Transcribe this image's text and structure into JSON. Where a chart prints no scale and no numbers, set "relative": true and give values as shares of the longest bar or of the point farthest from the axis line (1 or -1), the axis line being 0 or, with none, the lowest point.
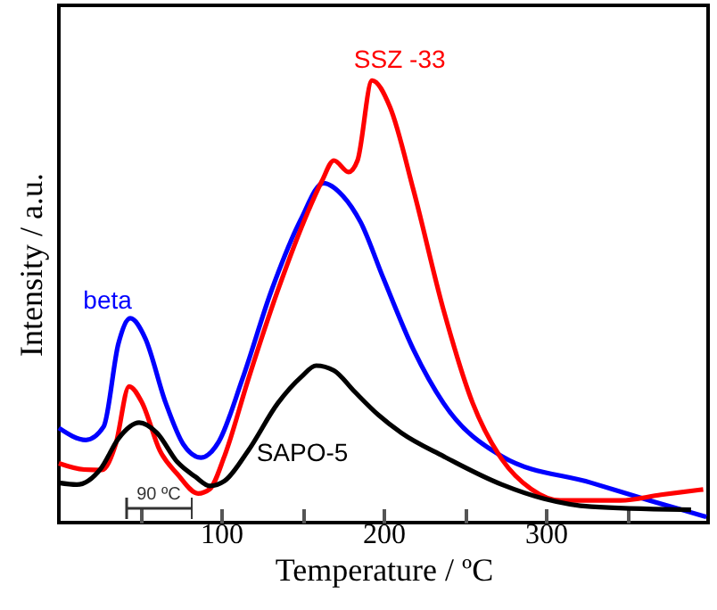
{
  "chart_data": {
    "type": "line",
    "relative": true,
    "xlabel": "Temperature / ºC",
    "ylabel": "Intensity / a.u.",
    "xlim": [
      0,
      400
    ],
    "xticks": [
      {
        "value": 50,
        "label": null
      },
      100,
      {
        "value": 150,
        "label": null
      },
      200,
      {
        "value": 250,
        "label": null
      },
      300,
      {
        "value": 350,
        "label": null
      }
    ],
    "grid": false,
    "marker": "none",
    "line_style": "solid",
    "annotations": [
      "90 ºC"
    ],
    "series": [
      {
        "name": "beta",
        "color": "#0000ff",
        "x": [
          0,
          16.7,
          27.6,
          36.7,
          44,
          53.1,
          65.8,
          76.7,
          87.6,
          98.5,
          113,
          131,
          149,
          163,
          175,
          186,
          200,
          218.5,
          237,
          273,
          328,
          364,
          399
        ],
        "values": [
          0.214,
          0.187,
          0.217,
          0.405,
          0.462,
          0.418,
          0.271,
          0.177,
          0.147,
          0.183,
          0.324,
          0.525,
          0.685,
          0.768,
          0.739,
          0.679,
          0.552,
          0.391,
          0.27,
          0.15,
          0.09,
          0.05,
          0.013
        ]
      },
      {
        "name": "SSZ -33",
        "color": "#ff0000",
        "x": [
          0,
          15.6,
          26.5,
          35,
          43.3,
          51.3,
          62.2,
          73,
          85.8,
          93,
          102,
          116.7,
          134.9,
          153,
          162,
          169.5,
          178.5,
          184,
          193,
          204,
          218.5,
          236.7,
          255,
          273,
          291,
          309,
          346,
          371,
          397
        ],
        "values": [
          0.134,
          0.12,
          0.119,
          0.177,
          0.308,
          0.271,
          0.163,
          0.11,
          0.066,
          0.076,
          0.15,
          0.324,
          0.525,
          0.699,
          0.772,
          0.819,
          0.793,
          0.819,
          1,
          0.94,
          0.752,
          0.485,
          0.27,
          0.143,
          0.076,
          0.05,
          0.05,
          0.063,
          0.075
        ]
      },
      {
        "name": "SAPO-5",
        "color": "#000000",
        "x": [
          0,
          11,
          26,
          36.7,
          49.5,
          60.4,
          73,
          84,
          93,
          102,
          116.7,
          134.9,
          149.5,
          158.5,
          169.5,
          182,
          196.7,
          211,
          237,
          273,
          299,
          328,
          389.5
        ],
        "values": [
          0.09,
          0.086,
          0.123,
          0.19,
          0.226,
          0.203,
          0.137,
          0.104,
          0.083,
          0.094,
          0.163,
          0.27,
          0.33,
          0.355,
          0.344,
          0.297,
          0.244,
          0.203,
          0.15,
          0.086,
          0.054,
          0.036,
          0.029
        ]
      }
    ]
  }
}
